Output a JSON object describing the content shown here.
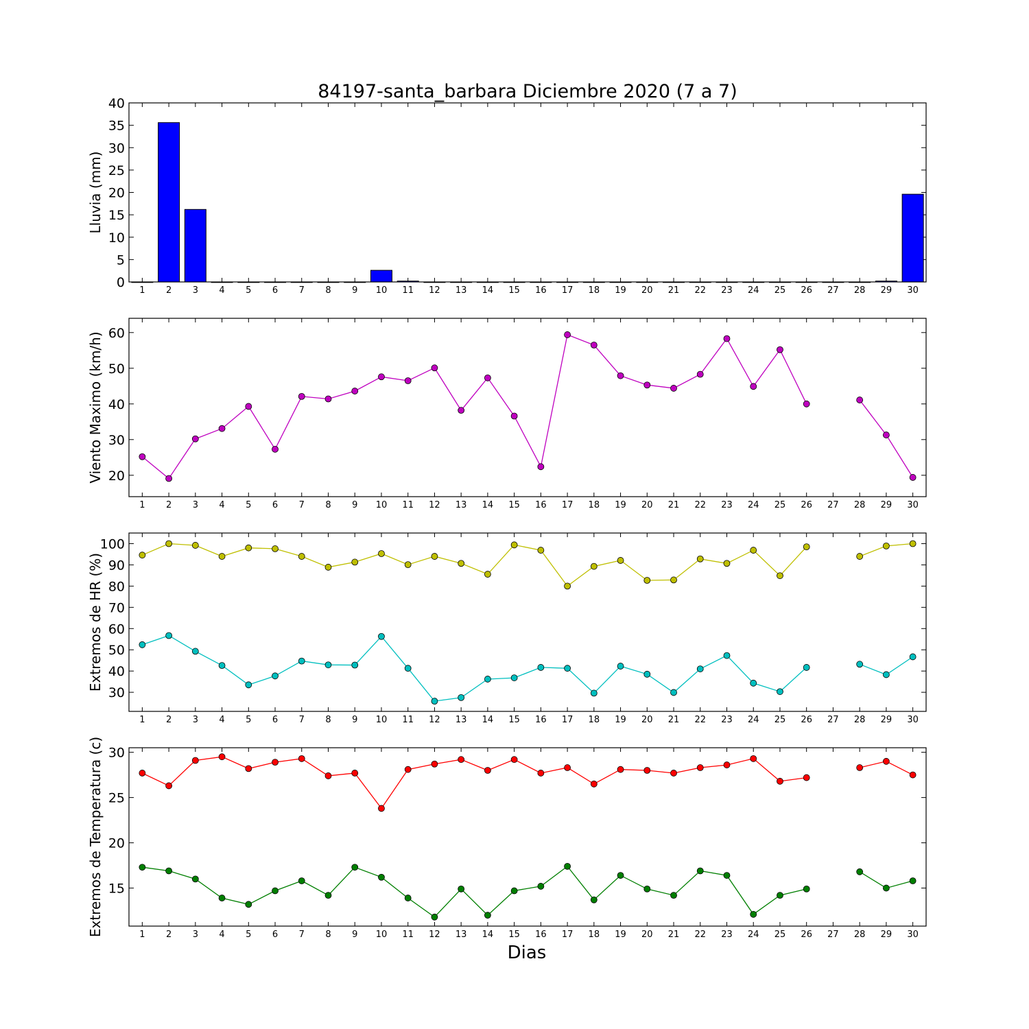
{
  "title": "84197-santa_barbara Diciembre 2020  (7 a 7)",
  "xlabel": "Dias",
  "chart_data": [
    {
      "type": "bar",
      "ylabel": "Lluvia (mm)",
      "ylim": [
        0,
        40
      ],
      "yticks": [
        0,
        5,
        10,
        15,
        20,
        25,
        30,
        35,
        40
      ],
      "categories": [
        "1",
        "2",
        "3",
        "4",
        "5",
        "6",
        "7",
        "8",
        "9",
        "10",
        "11",
        "12",
        "13",
        "14",
        "15",
        "16",
        "17",
        "18",
        "19",
        "20",
        "21",
        "22",
        "23",
        "24",
        "25",
        "26",
        "27",
        "28",
        "29",
        "30"
      ],
      "colors": {
        "bar": "#0000ff"
      },
      "values": [
        0,
        35.6,
        16.2,
        0,
        0,
        0,
        0,
        0,
        0,
        2.6,
        0.2,
        0,
        0,
        0,
        0,
        0,
        0,
        0,
        0,
        0,
        0,
        0,
        0,
        0,
        0,
        0,
        0,
        0,
        0.2,
        19.6
      ]
    },
    {
      "type": "line",
      "ylabel": "Viento Maximo (km/h)",
      "ylim": [
        14,
        64
      ],
      "yticks": [
        20,
        30,
        40,
        50,
        60
      ],
      "categories": [
        "1",
        "2",
        "3",
        "4",
        "5",
        "6",
        "7",
        "8",
        "9",
        "10",
        "11",
        "12",
        "13",
        "14",
        "15",
        "16",
        "17",
        "18",
        "19",
        "20",
        "21",
        "22",
        "23",
        "24",
        "25",
        "26",
        "27",
        "28",
        "29",
        "30"
      ],
      "series": [
        {
          "color": "#bf00bf",
          "values": [
            25.2,
            19.1,
            30.2,
            33.1,
            39.3,
            27.3,
            42.1,
            41.4,
            43.6,
            47.6,
            46.5,
            50.1,
            38.2,
            47.3,
            36.6,
            22.4,
            59.4,
            56.5,
            47.9,
            45.3,
            44.4,
            48.3,
            58.3,
            44.9,
            55.2,
            40.0,
            null,
            41.1,
            31.3,
            19.4
          ]
        }
      ]
    },
    {
      "type": "line",
      "ylabel": "Extremos de HR (%)",
      "ylim": [
        21,
        105
      ],
      "yticks": [
        30,
        40,
        50,
        60,
        70,
        80,
        90,
        100
      ],
      "categories": [
        "1",
        "2",
        "3",
        "4",
        "5",
        "6",
        "7",
        "8",
        "9",
        "10",
        "11",
        "12",
        "13",
        "14",
        "15",
        "16",
        "17",
        "18",
        "19",
        "20",
        "21",
        "22",
        "23",
        "24",
        "25",
        "26",
        "27",
        "28",
        "29",
        "30"
      ],
      "series": [
        {
          "color": "#bfbf00",
          "values": [
            94.6,
            100,
            99.2,
            94,
            98,
            97.6,
            94,
            88.9,
            91.3,
            95.3,
            90.1,
            94,
            90.7,
            85.6,
            99.4,
            96.9,
            80,
            89.3,
            92.1,
            82.7,
            82.9,
            92.8,
            90.7,
            96.9,
            84.9,
            98.5,
            null,
            94,
            98.9,
            100
          ]
        },
        {
          "color": "#00bfbf",
          "values": [
            52.4,
            56.7,
            49.3,
            42.6,
            33.5,
            37.7,
            44.7,
            42.9,
            42.8,
            56.3,
            41.3,
            25.8,
            27.5,
            36.2,
            36.8,
            41.7,
            41.3,
            29.6,
            42.3,
            38.5,
            29.9,
            41,
            47.3,
            34.3,
            30.3,
            41.7,
            null,
            43.2,
            38.3,
            46.7
          ]
        }
      ]
    },
    {
      "type": "line",
      "ylabel": "Extremos de Temperatura (c)",
      "ylim": [
        10.8,
        30.5
      ],
      "yticks": [
        15,
        20,
        25,
        30
      ],
      "categories": [
        "1",
        "2",
        "3",
        "4",
        "5",
        "6",
        "7",
        "8",
        "9",
        "10",
        "11",
        "12",
        "13",
        "14",
        "15",
        "16",
        "17",
        "18",
        "19",
        "20",
        "21",
        "22",
        "23",
        "24",
        "25",
        "26",
        "27",
        "28",
        "29",
        "30"
      ],
      "series": [
        {
          "color": "#ff0000",
          "values": [
            27.7,
            26.3,
            29.1,
            29.5,
            28.2,
            28.9,
            29.3,
            27.4,
            27.7,
            23.8,
            28.1,
            28.7,
            29.2,
            28,
            29.2,
            27.7,
            28.3,
            26.5,
            28.1,
            28,
            27.7,
            28.3,
            28.6,
            29.3,
            26.8,
            27.2,
            null,
            28.3,
            29,
            27.5
          ]
        },
        {
          "color": "#007f00",
          "values": [
            17.3,
            16.9,
            16,
            13.9,
            13.2,
            14.7,
            15.8,
            14.2,
            17.3,
            16.2,
            13.9,
            11.8,
            14.9,
            12,
            14.7,
            15.2,
            17.4,
            13.7,
            16.4,
            14.9,
            14.2,
            16.9,
            16.4,
            12.1,
            14.2,
            14.9,
            null,
            16.8,
            15,
            15.8
          ]
        }
      ]
    }
  ]
}
